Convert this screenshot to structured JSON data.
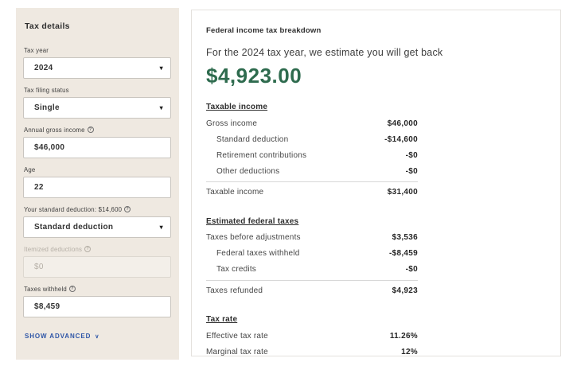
{
  "icons": {
    "info": "?",
    "select_caret": "▾",
    "advanced_chevron": "∨"
  },
  "colors": {
    "sidebar_bg": "#efe9e1",
    "accent_green": "#2e6b4e",
    "link_blue": "#2d55a7"
  },
  "sidebar": {
    "title": "Tax details",
    "fields": [
      {
        "label": "Tax year",
        "value": "2024",
        "type": "select"
      },
      {
        "label": "Tax filing status",
        "value": "Single",
        "type": "select"
      },
      {
        "label": "Annual gross income",
        "value": "$46,000",
        "type": "input",
        "info": true
      },
      {
        "label": "Age",
        "value": "22",
        "type": "input"
      },
      {
        "label": "Your standard deduction: $14,600",
        "value": "Standard deduction",
        "type": "select",
        "info": true
      },
      {
        "label": "Itemized deductions",
        "value": "$0",
        "type": "input",
        "info": true,
        "disabled": true
      },
      {
        "label": "Taxes withheld",
        "value": "$8,459",
        "type": "input",
        "info": true
      }
    ],
    "show_advanced_label": "SHOW ADVANCED"
  },
  "panel": {
    "title": "Federal income tax breakdown",
    "subtitle": "For the 2024 tax year, we estimate you will get back",
    "amount": "$4,923.00",
    "sections": [
      {
        "heading": "Taxable income",
        "rows": [
          {
            "label": "Gross income",
            "value": "$46,000"
          },
          {
            "label": "Standard deduction",
            "value": "-$14,600"
          },
          {
            "label": "Retirement contributions",
            "value": "-$0"
          },
          {
            "label": "Other deductions",
            "value": "-$0"
          },
          {
            "label": "Taxable income",
            "value": "$31,400"
          }
        ]
      },
      {
        "heading": "Estimated federal taxes",
        "rows": [
          {
            "label": "Taxes before adjustments",
            "value": "$3,536"
          },
          {
            "label": "Federal taxes withheld",
            "value": "-$8,459"
          },
          {
            "label": "Tax credits",
            "value": "-$0"
          },
          {
            "label": "Taxes refunded",
            "value": "$4,923"
          }
        ]
      },
      {
        "heading": "Tax rate",
        "rows": [
          {
            "label": "Effective tax rate",
            "value": "11.26%"
          },
          {
            "label": "Marginal tax rate",
            "value": "12%"
          }
        ]
      }
    ]
  }
}
